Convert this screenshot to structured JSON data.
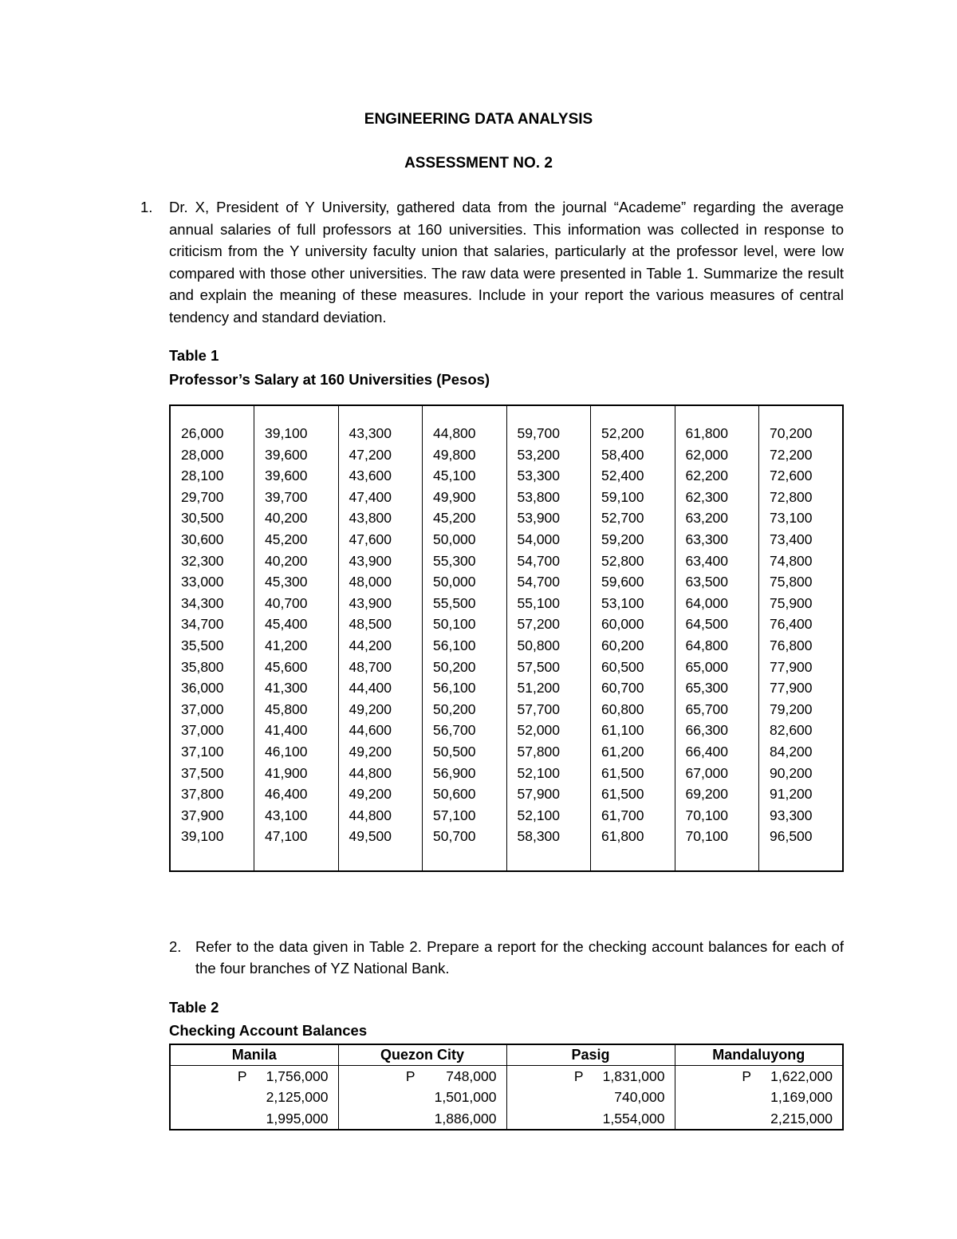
{
  "colors": {
    "text": "#000000",
    "background": "#ffffff",
    "border": "#000000"
  },
  "header": {
    "title": "ENGINEERING DATA ANALYSIS",
    "subtitle": "ASSESSMENT NO. 2"
  },
  "question1": {
    "number": "1.",
    "text": "Dr. X, President of Y University, gathered data from the journal “Academe” regarding the average annual salaries of full professors at 160 universities.  This information was collected in response to criticism from the Y university faculty union that salaries, particularly at the professor level, were low compared with those other universities.  The raw data were presented in Table 1.  Summarize the result and explain the meaning of these measures.  Include in your report the various measures of central tendency and standard deviation."
  },
  "table1": {
    "label": "Table 1",
    "caption": "Professor’s Salary at 160 Universities (Pesos)",
    "columns": [
      [
        "26,000",
        "28,000",
        "28,100",
        "29,700",
        "30,500",
        "30,600",
        "32,300",
        "33,000",
        "34,300",
        "34,700",
        "35,500",
        "35,800",
        "36,000",
        "37,000",
        "37,000",
        "37,100",
        "37,500",
        "37,800",
        "37,900",
        "39,100"
      ],
      [
        "39,100",
        "39,600",
        "39,600",
        "39,700",
        "40,200",
        "45,200",
        "40,200",
        "45,300",
        "40,700",
        "45,400",
        "41,200",
        "45,600",
        "41,300",
        "45,800",
        "41,400",
        "46,100",
        "41,900",
        "46,400",
        "43,100",
        "47,100"
      ],
      [
        "43,300",
        "47,200",
        "43,600",
        "47,400",
        "43,800",
        "47,600",
        "43,900",
        "48,000",
        "43,900",
        "48,500",
        "44,200",
        "48,700",
        "44,400",
        "49,200",
        "44,600",
        "49,200",
        "44,800",
        "49,200",
        "44,800",
        "49,500"
      ],
      [
        "44,800",
        "49,800",
        "45,100",
        "49,900",
        "45,200",
        "50,000",
        "55,300",
        "50,000",
        "55,500",
        "50,100",
        "56,100",
        "50,200",
        "56,100",
        "50,200",
        "56,700",
        "50,500",
        "56,900",
        "50,600",
        "57,100",
        "50,700"
      ],
      [
        "59,700",
        "53,200",
        "53,300",
        "53,800",
        "53,900",
        "54,000",
        "54,700",
        "54,700",
        "55,100",
        "57,200",
        "50,800",
        "57,500",
        "51,200",
        "57,700",
        "52,000",
        "57,800",
        "52,100",
        "57,900",
        "52,100",
        "58,300"
      ],
      [
        "52,200",
        "58,400",
        "52,400",
        "59,100",
        "52,700",
        "59,200",
        "52,800",
        "59,600",
        "53,100",
        "60,000",
        "60,200",
        "60,500",
        "60,700",
        "60,800",
        "61,100",
        "61,200",
        "61,500",
        "61,500",
        "61,700",
        "61,800"
      ],
      [
        "61,800",
        "62,000",
        "62,200",
        "62,300",
        "63,200",
        "63,300",
        "63,400",
        "63,500",
        "64,000",
        "64,500",
        "64,800",
        "65,000",
        "65,300",
        "65,700",
        "66,300",
        "66,400",
        "67,000",
        "69,200",
        "70,100",
        "70,100"
      ],
      [
        "70,200",
        "72,200",
        "72,600",
        "72,800",
        "73,100",
        "73,400",
        "74,800",
        "75,800",
        "75,900",
        "76,400",
        "76,800",
        "77,900",
        "77,900",
        "79,200",
        "82,600",
        "84,200",
        "90,200",
        "91,200",
        "93,300",
        "96,500"
      ]
    ]
  },
  "question2": {
    "number": "2.",
    "text": "Refer to the data given in Table 2.  Prepare a report for the checking account balances for each of the four branches of YZ National Bank."
  },
  "table2": {
    "label": "Table 2",
    "caption": "Checking Account Balances",
    "headers": [
      "Manila",
      "Quezon City",
      "Pasig",
      "Mandaluyong"
    ],
    "currency_symbol": "P",
    "rows": [
      [
        "1,756,000",
        "748,000",
        "1,831,000",
        "1,622,000"
      ],
      [
        "2,125,000",
        "1,501,000",
        "740,000",
        "1,169,000"
      ],
      [
        "1,995,000",
        "1,886,000",
        "1,554,000",
        "2,215,000"
      ]
    ]
  }
}
